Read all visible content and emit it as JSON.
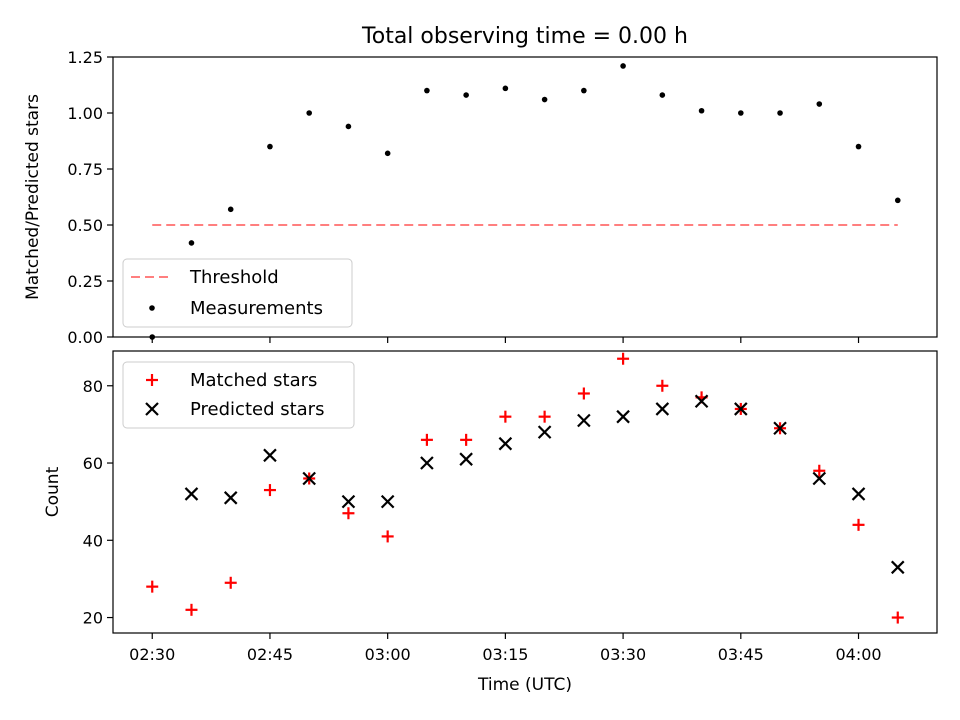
{
  "chart_data": [
    {
      "type": "scatter",
      "title": "Total observing time = 0.00 h",
      "xlabel": "",
      "ylabel": "Matched/Predicted stars",
      "ylim": [
        0,
        1.25
      ],
      "yticks": [
        0.0,
        0.25,
        0.5,
        0.75,
        1.0,
        1.25
      ],
      "ytick_labels": [
        "0.00",
        "0.25",
        "0.50",
        "0.75",
        "1.00",
        "1.25"
      ],
      "threshold": {
        "name": "Threshold",
        "y": 0.5,
        "x_start": "02:30",
        "x_end": "04:05",
        "color": "#ff7f7f"
      },
      "series": [
        {
          "name": "Measurements",
          "color": "#000000",
          "marker": "dot",
          "x": [
            "02:30",
            "02:35",
            "02:40",
            "02:45",
            "02:50",
            "02:55",
            "03:00",
            "03:05",
            "03:10",
            "03:15",
            "03:20",
            "03:25",
            "03:30",
            "03:35",
            "03:40",
            "03:45",
            "03:50",
            "03:55",
            "04:00",
            "04:05"
          ],
          "y": [
            0.0,
            0.42,
            0.57,
            0.85,
            1.0,
            0.94,
            0.82,
            1.1,
            1.08,
            1.11,
            1.06,
            1.1,
            1.21,
            1.08,
            1.01,
            1.0,
            1.0,
            1.04,
            0.85,
            0.61
          ]
        }
      ],
      "legend": {
        "placement": "lower-left",
        "entries": [
          "Threshold",
          "Measurements"
        ]
      }
    },
    {
      "type": "scatter",
      "xlabel": "Time (UTC)",
      "ylabel": "Count",
      "xlim": [
        "02:25",
        "04:10"
      ],
      "ylim": [
        16,
        89
      ],
      "xticks": [
        "02:30",
        "02:45",
        "03:00",
        "03:15",
        "03:30",
        "03:45",
        "04:00"
      ],
      "yticks": [
        20,
        40,
        60,
        80
      ],
      "ytick_labels": [
        "20",
        "40",
        "60",
        "80"
      ],
      "series": [
        {
          "name": "Matched stars",
          "color": "#ff0000",
          "marker": "plus",
          "x": [
            "02:30",
            "02:35",
            "02:40",
            "02:45",
            "02:50",
            "02:55",
            "03:00",
            "03:05",
            "03:10",
            "03:15",
            "03:20",
            "03:25",
            "03:30",
            "03:35",
            "03:40",
            "03:45",
            "03:50",
            "03:55",
            "04:00",
            "04:05"
          ],
          "y": [
            28,
            22,
            29,
            53,
            56,
            47,
            41,
            66,
            66,
            72,
            72,
            78,
            87,
            80,
            77,
            74,
            69,
            58,
            44,
            20
          ]
        },
        {
          "name": "Predicted stars",
          "color": "#000000",
          "marker": "x",
          "x": [
            "02:30",
            "02:35",
            "02:40",
            "02:45",
            "02:50",
            "02:55",
            "03:00",
            "03:05",
            "03:10",
            "03:15",
            "03:20",
            "03:25",
            "03:30",
            "03:35",
            "03:40",
            "03:45",
            "03:50",
            "03:55",
            "04:00",
            "04:05"
          ],
          "y": [
            null,
            52,
            51,
            62,
            56,
            50,
            50,
            60,
            61,
            65,
            68,
            71,
            72,
            74,
            76,
            74,
            69,
            56,
            52,
            33
          ]
        }
      ],
      "legend": {
        "placement": "top-left",
        "entries": [
          "Matched stars",
          "Predicted stars"
        ]
      }
    }
  ]
}
